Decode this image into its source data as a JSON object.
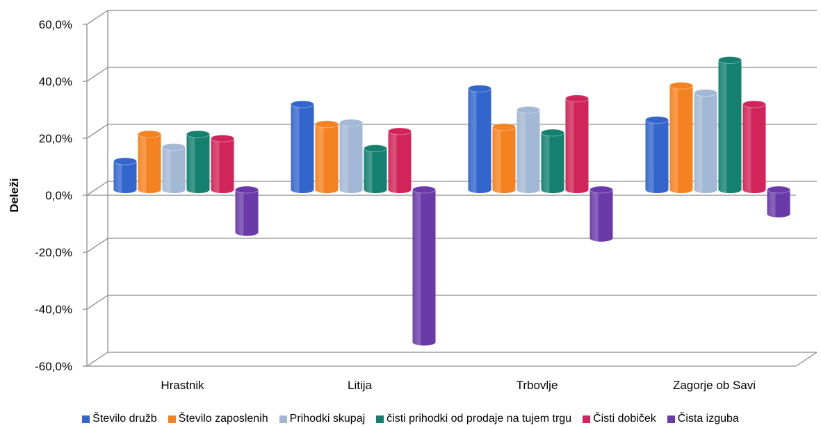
{
  "chart_data": {
    "type": "bar",
    "title": "",
    "xlabel": "",
    "ylabel": "Deleži",
    "ylim": [
      -60,
      60
    ],
    "yticks": [
      "60,0%",
      "40,0%",
      "20,0%",
      "0,0%",
      "-20,0%",
      "-40,0%",
      "-60,0%"
    ],
    "grid": true,
    "legend_position": "bottom",
    "categories": [
      "Hrastnik",
      "Litija",
      "Trbovlje",
      "Zagorje ob Savi"
    ],
    "series": [
      {
        "name": "Število družb",
        "color": "#3366cc",
        "values": [
          10,
          30,
          35.5,
          24.5
        ]
      },
      {
        "name": "Število zaposlenih",
        "color": "#f58220",
        "values": [
          19.5,
          23,
          22,
          36.5
        ]
      },
      {
        "name": "Prihodki skupaj",
        "color": "#a3b8d4",
        "values": [
          15,
          23.5,
          28,
          34
        ]
      },
      {
        "name": "čisti prihodki od prodaje na tujem trgu",
        "color": "#138070",
        "values": [
          19.5,
          14.5,
          20,
          45.5
        ]
      },
      {
        "name": "Čisti dobiček",
        "color": "#d0245a",
        "values": [
          18,
          20.5,
          32,
          30
        ]
      },
      {
        "name": "Čista izguba",
        "color": "#6a3aa8",
        "values": [
          -15,
          -53.5,
          -17,
          -8.5
        ]
      }
    ]
  }
}
